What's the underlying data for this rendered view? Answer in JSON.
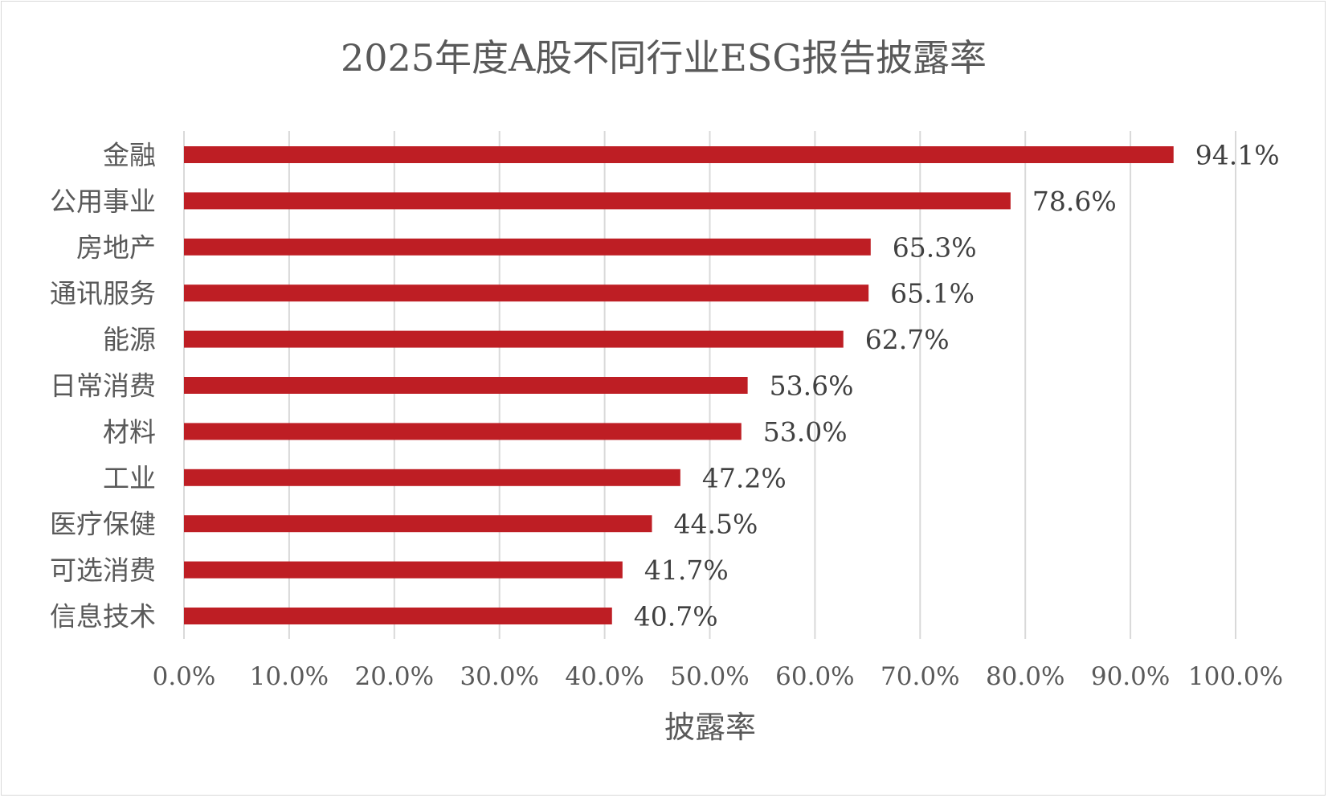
{
  "chart_data": {
    "type": "bar",
    "orientation": "horizontal",
    "title": "2025年度A股不同行业ESG报告披露率",
    "xlabel": "披露率",
    "ylabel": "",
    "categories": [
      "金融",
      "公用事业",
      "房地产",
      "通讯服务",
      "能源",
      "日常消费",
      "材料",
      "工业",
      "医疗保健",
      "可选消费",
      "信息技术"
    ],
    "values": [
      94.1,
      78.6,
      65.3,
      65.1,
      62.7,
      53.6,
      53.0,
      47.2,
      44.5,
      41.7,
      40.7
    ],
    "value_labels": [
      "94.1%",
      "78.6%",
      "65.3%",
      "65.1%",
      "62.7%",
      "53.6%",
      "53.0%",
      "47.2%",
      "44.5%",
      "41.7%",
      "40.7%"
    ],
    "xlim": [
      0,
      100
    ],
    "x_ticks": [
      0,
      10,
      20,
      30,
      40,
      50,
      60,
      70,
      80,
      90,
      100
    ],
    "x_tick_labels": [
      "0.0%",
      "10.0%",
      "20.0%",
      "30.0%",
      "40.0%",
      "50.0%",
      "60.0%",
      "70.0%",
      "80.0%",
      "90.0%",
      "100.0%"
    ],
    "grid": "vertical",
    "legend": "none",
    "bar_color": "#be1e24",
    "grid_color": "#d9d9d9"
  }
}
